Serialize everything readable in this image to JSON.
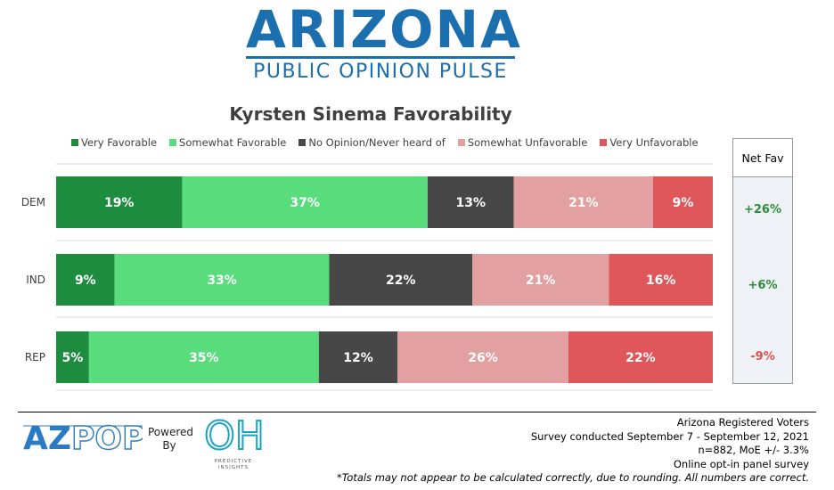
{
  "logo": {
    "main": "ARIZONA",
    "sub": "PUBLIC OPINION PULSE",
    "color": "#1b6fae"
  },
  "chart_data": {
    "type": "bar",
    "orientation": "horizontal",
    "stacked": true,
    "title": "Kyrsten Sinema Favorability",
    "categories": [
      "DEM",
      "IND",
      "REP"
    ],
    "series": [
      {
        "name": "Very Favorable",
        "color": "#1e8c3e",
        "values": [
          19,
          9,
          5
        ]
      },
      {
        "name": "Somewhat Favorable",
        "color": "#59dd7c",
        "values": [
          37,
          33,
          35
        ]
      },
      {
        "name": "No Opinion/Never heard of",
        "color": "#474747",
        "values": [
          13,
          22,
          12
        ]
      },
      {
        "name": "Somewhat Unfavorable",
        "color": "#e2a0a0",
        "values": [
          21,
          21,
          26
        ]
      },
      {
        "name": "Very Unfavorable",
        "color": "#df575a",
        "values": [
          9,
          16,
          22
        ]
      }
    ],
    "legend_position": "top",
    "grid": true
  },
  "net_fav": {
    "header": "Net Fav",
    "values": [
      {
        "text": "+26%",
        "color": "#2e8b3a"
      },
      {
        "text": "+6%",
        "color": "#2e8b3a"
      },
      {
        "text": "-9%",
        "color": "#d9534f"
      }
    ]
  },
  "footer": {
    "azpop": "AZPOP",
    "powered": "Powered",
    "by": "By",
    "partner_logo": "OH",
    "partner_text": "PREDICTIVE INSIGHTS",
    "notes": [
      "Arizona Registered Voters",
      "Survey conducted September 7 - September 12, 2021",
      "n=882, MoE +/- 3.3%",
      "Online opt-in panel survey"
    ],
    "disclaimer": "*Totals may not appear to be calculated correctly, due to rounding. All numbers are correct."
  }
}
